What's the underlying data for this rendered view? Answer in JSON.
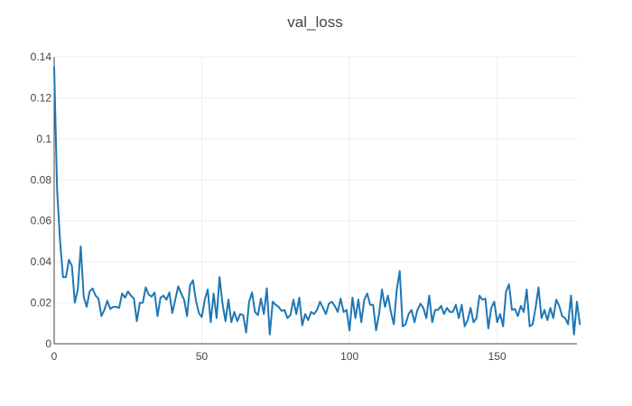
{
  "chart_data": {
    "type": "line",
    "title": "val_loss",
    "xlabel": "",
    "ylabel": "",
    "xlim": [
      0,
      177
    ],
    "ylim": [
      0,
      0.14
    ],
    "grid": true,
    "legend": "none",
    "x_ticks": [
      0,
      50,
      100,
      150
    ],
    "x_tick_labels": [
      "0",
      "50",
      "100",
      "150"
    ],
    "y_ticks": [
      0,
      0.02,
      0.04,
      0.06,
      0.08,
      0.1,
      0.12,
      0.14
    ],
    "y_tick_labels": [
      "0",
      "0.02",
      "0.04",
      "0.06",
      "0.08",
      "0.1",
      "0.12",
      "0.14"
    ],
    "series": [
      {
        "color": "#1f77b4",
        "x_start": 0,
        "x_step": 1,
        "values": [
          0.135,
          0.075,
          0.05,
          0.0325,
          0.0325,
          0.041,
          0.038,
          0.02,
          0.0265,
          0.0475,
          0.023,
          0.018,
          0.0255,
          0.027,
          0.0235,
          0.022,
          0.0135,
          0.0165,
          0.021,
          0.017,
          0.018,
          0.018,
          0.0175,
          0.0245,
          0.0225,
          0.0255,
          0.0235,
          0.022,
          0.011,
          0.02,
          0.02,
          0.0275,
          0.024,
          0.023,
          0.025,
          0.0135,
          0.0225,
          0.0235,
          0.0215,
          0.025,
          0.015,
          0.0215,
          0.028,
          0.0245,
          0.0215,
          0.0135,
          0.0285,
          0.031,
          0.021,
          0.015,
          0.013,
          0.0215,
          0.0265,
          0.0105,
          0.0245,
          0.0125,
          0.0325,
          0.0195,
          0.011,
          0.0215,
          0.0105,
          0.0155,
          0.011,
          0.0145,
          0.014,
          0.0055,
          0.0205,
          0.025,
          0.0155,
          0.014,
          0.022,
          0.0145,
          0.027,
          0.0045,
          0.0205,
          0.019,
          0.018,
          0.016,
          0.0165,
          0.0125,
          0.014,
          0.0215,
          0.0145,
          0.0225,
          0.009,
          0.0145,
          0.0115,
          0.0155,
          0.0145,
          0.0165,
          0.0205,
          0.0175,
          0.0145,
          0.0195,
          0.0205,
          0.0185,
          0.0155,
          0.022,
          0.0155,
          0.0165,
          0.0065,
          0.0225,
          0.0125,
          0.0215,
          0.0105,
          0.0215,
          0.0245,
          0.019,
          0.019,
          0.0065,
          0.0145,
          0.0265,
          0.018,
          0.0235,
          0.0155,
          0.0095,
          0.0265,
          0.0355,
          0.0085,
          0.0095,
          0.0145,
          0.0165,
          0.0105,
          0.0165,
          0.0195,
          0.0175,
          0.0125,
          0.0235,
          0.0105,
          0.0165,
          0.0165,
          0.0185,
          0.0145,
          0.0175,
          0.0155,
          0.0155,
          0.019,
          0.0125,
          0.019,
          0.0085,
          0.0115,
          0.0175,
          0.0105,
          0.0125,
          0.0235,
          0.0215,
          0.022,
          0.0075,
          0.0175,
          0.0205,
          0.0105,
          0.0145,
          0.0085,
          0.0255,
          0.029,
          0.0165,
          0.017,
          0.0135,
          0.0185,
          0.0155,
          0.0265,
          0.0085,
          0.0095,
          0.0175,
          0.0275,
          0.0125,
          0.0165,
          0.0115,
          0.0175,
          0.0125,
          0.0215,
          0.0185,
          0.0135,
          0.0125,
          0.0095,
          0.0235,
          0.0045,
          0.0205,
          0.0095
        ]
      }
    ]
  }
}
